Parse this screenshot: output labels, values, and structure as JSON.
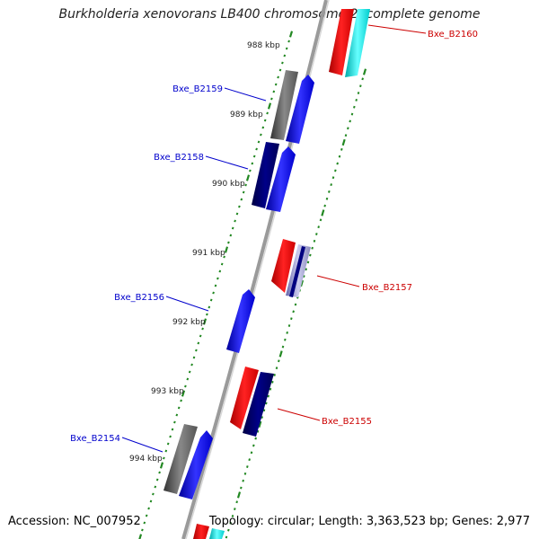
{
  "title": "Burkholderia xenovorans LB400 chromosome 2, complete genome",
  "accession_text": "Accession: NC_007952",
  "summary_text": "Topology: circular; Length: 3,363,523 bp; Genes: 2,977",
  "ruler_labels": [
    "988 kbp",
    "989 kbp",
    "990 kbp",
    "991 kbp",
    "992 kbp",
    "993 kbp",
    "994 kbp"
  ],
  "genes": {
    "left": [
      "Bxe_B2159",
      "Bxe_B2158",
      "Bxe_B2156",
      "Bxe_B2154"
    ],
    "right": [
      "Bxe_B2160",
      "Bxe_B2157",
      "Bxe_B2155"
    ]
  },
  "colors": {
    "left_label": "#0000cc",
    "right_label": "#cc0000",
    "ruler": "#228822",
    "backbone": "#888888",
    "forward_cds": "#0000ff",
    "forward_dark": "#000080",
    "reverse_cds": "#ff0000",
    "cyan": "#00e5e5",
    "gray": "#666666"
  }
}
